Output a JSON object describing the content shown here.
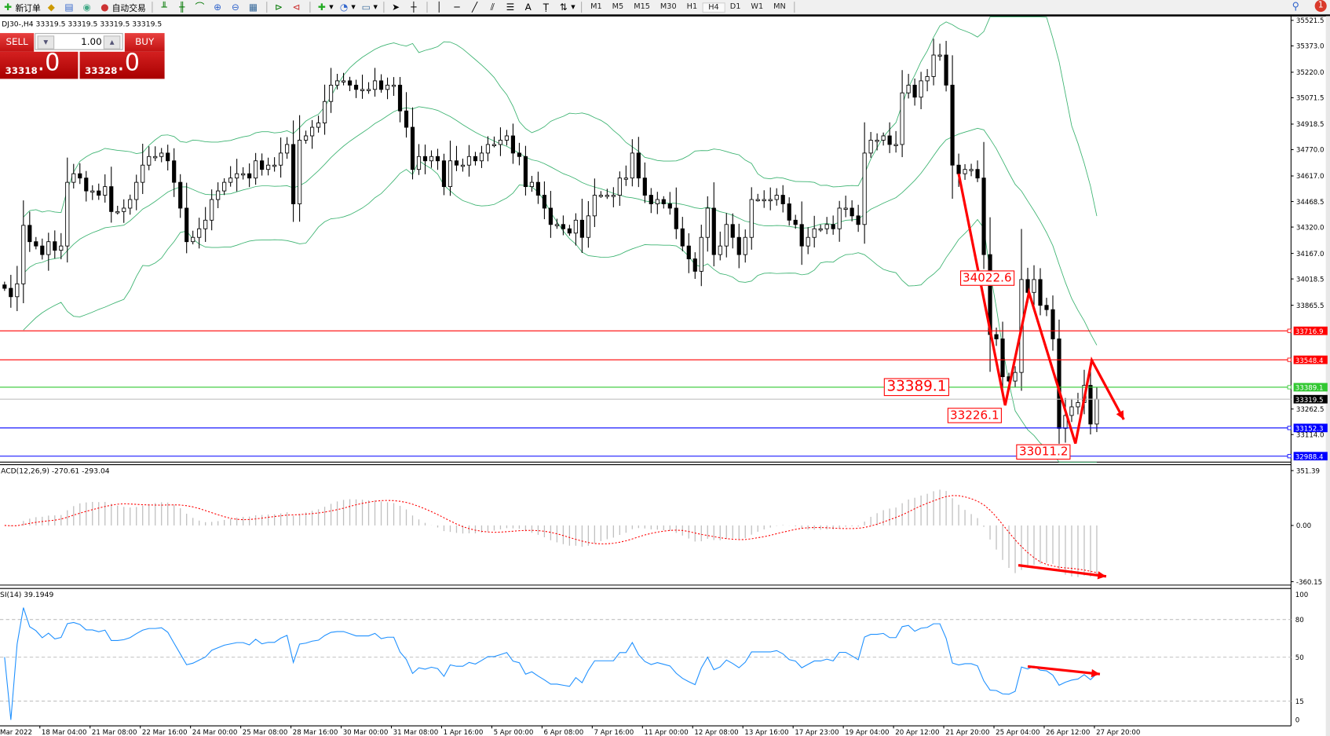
{
  "toolbar": {
    "new_order": "新订单",
    "auto_trading": "自动交易",
    "timeframes": [
      "M1",
      "M5",
      "M15",
      "M30",
      "H1",
      "H4",
      "D1",
      "W1",
      "MN"
    ],
    "active_timeframe": "H4",
    "notification_count": "1",
    "icons": [
      "new-order-icon",
      "history-icon",
      "market-watch-icon",
      "signal-icon",
      "auto-trading-icon",
      "bar-chart-icon",
      "candlestick-icon",
      "line-chart-icon",
      "zoom-in-icon",
      "zoom-out-icon",
      "tile-windows-icon",
      "autoscroll-icon",
      "chart-shift-icon",
      "indicators-icon",
      "periods-icon",
      "templates-icon",
      "cursor-icon",
      "crosshair-icon",
      "vertical-line-icon",
      "horizontal-line-icon",
      "trendline-icon",
      "equidistant-channel-icon",
      "fibonacci-icon",
      "text-icon",
      "text-label-icon",
      "arrows-icon",
      "search-icon",
      "notification-icon"
    ]
  },
  "chart": {
    "symbol_line": "DJ30-,H4  33319.5 33319.5 33319.5 33319.5",
    "one_click": {
      "sell_label": "SELL",
      "buy_label": "BUY",
      "lots": "1.00",
      "sell_main": "33318",
      "sell_big": ".0",
      "buy_main": "33328",
      "buy_big": ".0"
    },
    "price_ticks": [
      "35521.5",
      "35373.0",
      "35220.0",
      "35071.5",
      "34918.5",
      "34770.0",
      "34617.0",
      "34468.5",
      "34320.0",
      "34167.0",
      "34018.5",
      "33865.5",
      "33262.5",
      "33114.0"
    ],
    "time_labels": [
      "Mar 2022",
      "18 Mar 04:00",
      "21 Mar 08:00",
      "22 Mar 16:00",
      "24 Mar 00:00",
      "25 Mar 08:00",
      "28 Mar 16:00",
      "30 Mar 00:00",
      "31 Mar 08:00",
      "1 Apr 16:00",
      "5 Apr 00:00",
      "6 Apr 08:00",
      "7 Apr 16:00",
      "11 Apr 00:00",
      "12 Apr 08:00",
      "13 Apr 16:00",
      "17 Apr 23:00",
      "19 Apr 04:00",
      "20 Apr 12:00",
      "21 Apr 20:00",
      "25 Apr 04:00",
      "26 Apr 12:00",
      "27 Apr 20:00"
    ],
    "closes": [
      33964,
      33915,
      33990,
      34330,
      34235,
      34210,
      34160,
      34235,
      34185,
      34210,
      34580,
      34630,
      34605,
      34530,
      34530,
      34505,
      34555,
      34410,
      34410,
      34430,
      34480,
      34580,
      34680,
      34730,
      34730,
      34750,
      34705,
      34580,
      34430,
      34235,
      34260,
      34310,
      34360,
      34480,
      34530,
      34580,
      34605,
      34630,
      34630,
      34605,
      34705,
      34655,
      34680,
      34680,
      34750,
      34800,
      34455,
      34825,
      34850,
      34900,
      34925,
      35050,
      35145,
      35170,
      35170,
      35145,
      35120,
      35120,
      35120,
      35170,
      35120,
      35145,
      35145,
      34995,
      34900,
      34655,
      34730,
      34705,
      34730,
      34705,
      34555,
      34705,
      34680,
      34680,
      34730,
      34705,
      34750,
      34800,
      34800,
      34825,
      34850,
      34750,
      34730,
      34555,
      34580,
      34505,
      34430,
      34335,
      34335,
      34310,
      34285,
      34360,
      34260,
      34385,
      34505,
      34505,
      34505,
      34505,
      34605,
      34605,
      34750,
      34605,
      34505,
      34455,
      34480,
      34455,
      34430,
      34310,
      34210,
      34135,
      34063,
      34260,
      34430,
      34160,
      34210,
      34335,
      34260,
      34160,
      34260,
      34480,
      34480,
      34480,
      34480,
      34505,
      34455,
      34360,
      34335,
      34210,
      34260,
      34310,
      34310,
      34335,
      34310,
      34430,
      34430,
      34385,
      34335,
      34750,
      34825,
      34825,
      34850,
      34800,
      34800,
      35100,
      35145,
      35075,
      35170,
      35195,
      35320,
      35320,
      35145,
      34680,
      34630,
      34655,
      34655,
      34605,
      34160,
      33695,
      33670,
      33450,
      33425,
      33475,
      34015,
      33940,
      34015,
      33865,
      33840,
      33670,
      33150,
      33225,
      33275,
      33300,
      33400,
      33175,
      33319.5
    ],
    "hlines": [
      {
        "price": "33716.9",
        "color": "#ff0000"
      },
      {
        "price": "33548.4",
        "color": "#ff0000"
      },
      {
        "price": "33389.1",
        "color": "#32c832"
      },
      {
        "price": "33319.5",
        "color": "#000000",
        "line": "#c0c0c0"
      },
      {
        "price": "33152.3",
        "color": "#0000ff"
      },
      {
        "price": "32988.4",
        "color": "#0000ff"
      }
    ],
    "price_labels": [
      {
        "text": "34022.6",
        "bar": 161,
        "price": 34022.6
      },
      {
        "text": "33389.1",
        "bar": 150,
        "price": 33389.1,
        "large": true
      },
      {
        "text": "33226.1",
        "bar": 159,
        "price": 33226.1
      },
      {
        "text": "33011.2",
        "bar": 170,
        "price": 33011.2
      }
    ],
    "arrow_path": [
      [
        152,
        34630
      ],
      [
        159.4,
        33284
      ],
      [
        163.2,
        33940
      ],
      [
        170.6,
        33062
      ],
      [
        173.2,
        33546
      ],
      [
        178.3,
        33201
      ]
    ],
    "colors": {
      "bull": "#ffffff",
      "bear": "#000000",
      "bands": "#3cb371",
      "arrows": "#ff0000"
    }
  },
  "macd": {
    "label": "ACD(12,26,9) -270.61 -293.04",
    "ticks": [
      "351.39",
      "0.00",
      "-360.15"
    ],
    "range": [
      -360.15,
      351.39
    ],
    "arrow": [
      [
        161.5,
        -255
      ],
      [
        175.5,
        -326
      ]
    ]
  },
  "rsi": {
    "label": "SI(14) 39.1949",
    "ticks": [
      "100",
      "80",
      "50",
      "15",
      "0"
    ],
    "levels": [
      80,
      50,
      15
    ],
    "arrow": [
      [
        163,
        42.6
      ],
      [
        174.5,
        36.5
      ]
    ]
  }
}
